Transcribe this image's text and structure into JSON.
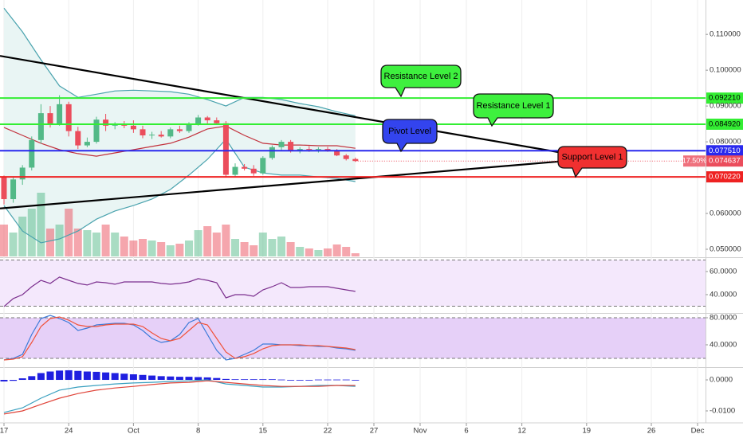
{
  "chart_data": [
    {
      "type": "candlestick",
      "xlim": [
        -0.43,
        75.86
      ],
      "xticks": [
        {
          "value": 0,
          "label": "17"
        },
        {
          "value": 7,
          "label": "24"
        },
        {
          "value": 14,
          "label": "Oct"
        },
        {
          "value": 21,
          "label": "8"
        },
        {
          "value": 28,
          "label": "15"
        },
        {
          "value": 35,
          "label": "22"
        },
        {
          "value": 40,
          "label": "27"
        },
        {
          "value": 45,
          "label": "Nov"
        },
        {
          "value": 50,
          "label": "6"
        },
        {
          "value": 56,
          "label": "12"
        },
        {
          "value": 63,
          "label": "19"
        },
        {
          "value": 70,
          "label": "26"
        },
        {
          "value": 75,
          "label": "Dec"
        }
      ],
      "ylim": [
        0.048,
        0.1196
      ],
      "yticks": [
        {
          "value": 0.11,
          "label": "0.110000"
        },
        {
          "value": 0.1,
          "label": "0.100000"
        },
        {
          "value": 0.09,
          "label": "0.090000"
        },
        {
          "value": 0.08,
          "label": "0.080000"
        },
        {
          "value": 0.06,
          "label": "0.060000"
        },
        {
          "value": 0.05,
          "label": "0.050000"
        }
      ],
      "grid": "x",
      "up_color": "#53b987",
      "down_color": "#eb4d5c",
      "ohlc": [
        [
          0.0702,
          0.0706,
          0.0625,
          0.064
        ],
        [
          0.064,
          0.07,
          0.063,
          0.0695
        ],
        [
          0.0695,
          0.0735,
          0.068,
          0.0728
        ],
        [
          0.0728,
          0.0815,
          0.072,
          0.0805
        ],
        [
          0.0805,
          0.0905,
          0.0795,
          0.088
        ],
        [
          0.088,
          0.09,
          0.084,
          0.085
        ],
        [
          0.085,
          0.093,
          0.0845,
          0.0905
        ],
        [
          0.0905,
          0.0912,
          0.0815,
          0.083
        ],
        [
          0.083,
          0.0842,
          0.078,
          0.079
        ],
        [
          0.079,
          0.0812,
          0.0785,
          0.08
        ],
        [
          0.08,
          0.087,
          0.0795,
          0.0862
        ],
        [
          0.0862,
          0.0878,
          0.083,
          0.0845
        ],
        [
          0.0845,
          0.0855,
          0.0835,
          0.0848
        ],
        [
          0.0848,
          0.0858,
          0.0838,
          0.0845
        ],
        [
          0.0845,
          0.086,
          0.0825,
          0.0835
        ],
        [
          0.0835,
          0.0845,
          0.081,
          0.0818
        ],
        [
          0.0818,
          0.0828,
          0.0808,
          0.082
        ],
        [
          0.082,
          0.083,
          0.0812,
          0.0815
        ],
        [
          0.0815,
          0.084,
          0.081,
          0.0835
        ],
        [
          0.0835,
          0.0845,
          0.0825,
          0.083
        ],
        [
          0.083,
          0.0855,
          0.0825,
          0.085
        ],
        [
          0.085,
          0.0875,
          0.0845,
          0.0868
        ],
        [
          0.0868,
          0.0872,
          0.085,
          0.086
        ],
        [
          0.086,
          0.0868,
          0.0848,
          0.0852
        ],
        [
          0.0852,
          0.0858,
          0.07,
          0.0708
        ],
        [
          0.0708,
          0.074,
          0.0702,
          0.073
        ],
        [
          0.073,
          0.0738,
          0.072,
          0.0725
        ],
        [
          0.0725,
          0.0735,
          0.0705,
          0.0712
        ],
        [
          0.0712,
          0.076,
          0.0708,
          0.0755
        ],
        [
          0.0755,
          0.079,
          0.075,
          0.0785
        ],
        [
          0.0785,
          0.0805,
          0.0775,
          0.08
        ],
        [
          0.08,
          0.0805,
          0.077,
          0.0775
        ],
        [
          0.0775,
          0.0785,
          0.0768,
          0.078
        ],
        [
          0.078,
          0.0788,
          0.0772,
          0.0778
        ],
        [
          0.0778,
          0.0785,
          0.077,
          0.078
        ],
        [
          0.078,
          0.0786,
          0.0772,
          0.0776
        ],
        [
          0.0776,
          0.078,
          0.076,
          0.0762
        ],
        [
          0.0762,
          0.0766,
          0.0748,
          0.0752
        ],
        [
          0.0752,
          0.0756,
          0.0744,
          0.074637
        ]
      ],
      "volume": [
        40,
        30,
        50,
        60,
        80,
        35,
        40,
        60,
        35,
        33,
        30,
        40,
        30,
        25,
        20,
        22,
        20,
        18,
        14,
        16,
        20,
        33,
        38,
        30,
        40,
        22,
        18,
        14,
        30,
        22,
        25,
        18,
        12,
        10,
        8,
        10,
        15,
        12,
        4
      ],
      "bollinger": {
        "x": [
          0,
          2,
          4,
          6,
          8,
          10,
          12,
          14,
          16,
          18,
          20,
          22,
          24,
          26,
          28,
          30,
          32,
          34,
          36,
          38
        ],
        "fill": "#e9f5f4",
        "series": [
          {
            "color": "#4aa3ae",
            "values": [
              0.1173,
              0.1107,
              0.1029,
              0.0956,
              0.0924,
              0.0933,
              0.0942,
              0.0944,
              0.0942,
              0.094,
              0.0933,
              0.0918,
              0.09,
              0.0924,
              0.0924,
              0.0918,
              0.0907,
              0.0898,
              0.0884,
              0.0873
            ]
          },
          {
            "color": "#c2313c",
            "values": [
              0.084,
              0.0818,
              0.0796,
              0.0778,
              0.0767,
              0.076,
              0.0769,
              0.0778,
              0.0787,
              0.0796,
              0.0813,
              0.0836,
              0.0844,
              0.0818,
              0.0796,
              0.0791,
              0.0791,
              0.0789,
              0.0789,
              0.0782
            ]
          },
          {
            "color": "#4aa3ae",
            "values": [
              0.0622,
              0.0551,
              0.0518,
              0.0529,
              0.0551,
              0.0584,
              0.0607,
              0.0622,
              0.064,
              0.0667,
              0.0707,
              0.0751,
              0.0807,
              0.0729,
              0.0713,
              0.0707,
              0.0707,
              0.0702,
              0.0698,
              0.0689
            ]
          }
        ]
      },
      "trendlines": [
        {
          "color": "#000000",
          "x": [
            -0.43,
            60
          ],
          "y": [
            0.104,
            0.0771
          ]
        },
        {
          "color": "#000000",
          "x": [
            -0.43,
            60
          ],
          "y": [
            0.0614,
            0.0745
          ]
        }
      ],
      "levels": [
        {
          "value": 0.09221,
          "label": "0.092210",
          "color": "#33ee33",
          "label_color": "#000000"
        },
        {
          "value": 0.08492,
          "label": "0.084920",
          "color": "#33ee33",
          "label_color": "#000000"
        },
        {
          "value": 0.07751,
          "label": "0.077510",
          "color": "#2929ee",
          "label_color": "#ffffff"
        },
        {
          "value": 0.07022,
          "label": "0.070220",
          "color": "#ee2222",
          "label_color": "#ffffff"
        }
      ],
      "last_label": "0.074637",
      "last_change": "17.50%",
      "last_color": "#eb4d5c",
      "callouts": [
        {
          "text": "Resistance Level 2",
          "color": "#3ef03e"
        },
        {
          "text": "Resistance Level 1",
          "color": "#3ef03e"
        },
        {
          "text": "Pivot Level",
          "color": "#3344ee"
        },
        {
          "text": "Support Level 1",
          "color": "#f03030"
        }
      ]
    },
    {
      "type": "line",
      "ylim": [
        24.8,
        71.0
      ],
      "yticks": [
        {
          "value": 60,
          "label": "60.0000"
        },
        {
          "value": 40,
          "label": "40.0000"
        }
      ],
      "bands": [
        30,
        70
      ],
      "band_color": "#f4e8fc",
      "series": [
        {
          "color": "#7b2f8e",
          "values": [
            29.7,
            36.6,
            40.0,
            46.9,
            52.4,
            49.7,
            55.2,
            52.4,
            49.7,
            48.3,
            51.0,
            50.3,
            49.0,
            51.0,
            51.0,
            51.0,
            51.0,
            49.7,
            49.0,
            49.7,
            51.0,
            53.8,
            52.4,
            50.3,
            37.2,
            40.0,
            40.0,
            38.6,
            44.1,
            46.9,
            50.3,
            46.2,
            46.2,
            46.9,
            46.9,
            46.9,
            45.5,
            44.1,
            42.8
          ]
        }
      ]
    },
    {
      "type": "line",
      "ylim": [
        8.2,
        84.7
      ],
      "yticks": [
        {
          "value": 80,
          "label": "80.0000"
        },
        {
          "value": 40,
          "label": "40.0000"
        }
      ],
      "bands": [
        20,
        80
      ],
      "band_color": "#e6d0f8",
      "series": [
        {
          "color": "#3d7bd9",
          "values": [
            17.6,
            20.0,
            25.9,
            55.3,
            78.8,
            83.5,
            78.8,
            72.9,
            61.2,
            64.7,
            69.4,
            70.6,
            71.8,
            71.8,
            69.4,
            61.2,
            49.4,
            43.5,
            45.9,
            55.3,
            72.9,
            78.8,
            55.3,
            31.8,
            17.6,
            20.0,
            25.9,
            31.8,
            41.2,
            41.2,
            40.0,
            40.0,
            38.8,
            38.8,
            37.6,
            37.6,
            35.3,
            34.1,
            31.8
          ]
        },
        {
          "color": "#f0523a",
          "values": [
            17.6,
            18.8,
            22.4,
            43.5,
            67.1,
            78.8,
            81.2,
            76.5,
            69.4,
            67.1,
            67.1,
            69.4,
            70.6,
            70.6,
            70.6,
            67.1,
            57.6,
            49.4,
            45.9,
            49.4,
            61.2,
            72.9,
            69.4,
            49.4,
            29.4,
            20.0,
            22.4,
            27.1,
            34.1,
            38.8,
            40.0,
            40.0,
            40.0,
            38.8,
            38.8,
            37.6,
            36.5,
            35.3,
            32.9
          ]
        }
      ]
    },
    {
      "type": "macd",
      "ylim": [
        -0.0136,
        0.0036
      ],
      "yticks": [
        {
          "value": 0,
          "label": "0.0000"
        },
        {
          "value": -0.01,
          "label": "-0.0100"
        }
      ],
      "histogram": {
        "color": "#1f1fe0",
        "values": [
          -0.0005,
          -0.0003,
          0.0005,
          0.0012,
          0.0022,
          0.0027,
          0.003,
          0.0031,
          0.0029,
          0.0027,
          0.0026,
          0.0024,
          0.0022,
          0.002,
          0.0018,
          0.0016,
          0.0014,
          0.0012,
          0.0011,
          0.001,
          0.001,
          0.0009,
          0.0008,
          0.0006,
          0.0003,
          0.0002,
          0.0002,
          0.0002,
          0.0002,
          0.0002,
          0.0001,
          0,
          0,
          0,
          0.0001,
          0.0001,
          0.0001,
          0.0001,
          0
        ]
      },
      "x": [
        0,
        2,
        4,
        6,
        8,
        10,
        12,
        14,
        16,
        18,
        20,
        22,
        24,
        26,
        28,
        30,
        32,
        34,
        36,
        38
      ],
      "series": [
        {
          "color": "#3aa0c0",
          "values": [
            -0.0105,
            -0.009,
            -0.0059,
            -0.0033,
            -0.0023,
            -0.0018,
            -0.0013,
            -0.001,
            -0.0008,
            -0.0005,
            -0.0003,
            0,
            -0.0013,
            -0.0018,
            -0.0023,
            -0.0023,
            -0.0021,
            -0.0018,
            -0.0018,
            -0.0021
          ]
        },
        {
          "color": "#e0453a",
          "values": [
            -0.011,
            -0.01,
            -0.0079,
            -0.0059,
            -0.0044,
            -0.0033,
            -0.0026,
            -0.0021,
            -0.0015,
            -0.001,
            -0.0008,
            -0.0003,
            -0.0008,
            -0.0013,
            -0.0018,
            -0.0021,
            -0.0021,
            -0.0021,
            -0.0018,
            -0.0018
          ]
        }
      ]
    }
  ]
}
